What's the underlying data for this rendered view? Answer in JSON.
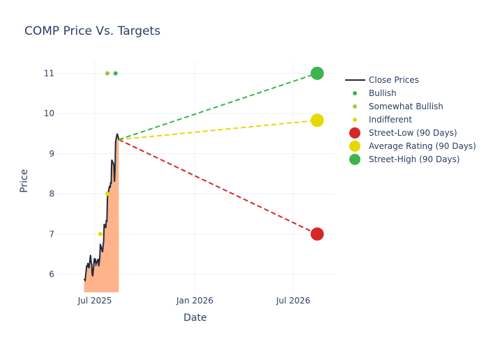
{
  "chart_data": {
    "type": "line",
    "title": "COMP Price Vs. Targets",
    "xlabel": "Date",
    "ylabel": "Price",
    "xlim": [
      "2025-04-20",
      "2026-09-15"
    ],
    "ylim": [
      5.55,
      11.3
    ],
    "x_ticks": [
      {
        "date": "2025-07-01",
        "label": "Jul 2025"
      },
      {
        "date": "2026-01-01",
        "label": "Jan 2026"
      },
      {
        "date": "2026-07-01",
        "label": "Jul 2026"
      }
    ],
    "y_ticks": [
      6,
      7,
      8,
      9,
      10,
      11
    ],
    "grid": true,
    "legend_position": "right",
    "series": [
      {
        "name": "Close Prices",
        "kind": "line-area",
        "color": "#1f2a3c",
        "fill_color": "#ffb38a",
        "x": [
          "2025-06-11",
          "2025-06-13",
          "2025-06-16",
          "2025-06-17",
          "2025-06-18",
          "2025-06-20",
          "2025-06-23",
          "2025-06-24",
          "2025-06-25",
          "2025-06-26",
          "2025-06-27",
          "2025-06-30",
          "2025-07-01",
          "2025-07-02",
          "2025-07-03",
          "2025-07-07",
          "2025-07-08",
          "2025-07-09",
          "2025-07-10",
          "2025-07-11",
          "2025-07-14",
          "2025-07-15",
          "2025-07-16",
          "2025-07-17",
          "2025-07-18",
          "2025-07-21",
          "2025-07-22",
          "2025-07-23",
          "2025-07-24",
          "2025-07-25",
          "2025-07-28",
          "2025-07-29",
          "2025-07-30",
          "2025-07-31",
          "2025-08-01",
          "2025-08-04",
          "2025-08-05",
          "2025-08-06",
          "2025-08-07",
          "2025-08-08",
          "2025-08-11",
          "2025-08-12",
          "2025-08-13",
          "2025-08-14"
        ],
        "y": [
          5.88,
          5.85,
          6.22,
          6.18,
          6.28,
          6.15,
          6.48,
          6.3,
          6.25,
          6.0,
          5.95,
          6.4,
          6.32,
          6.35,
          6.25,
          6.38,
          6.2,
          6.3,
          6.45,
          6.75,
          6.6,
          6.55,
          6.7,
          6.8,
          7.25,
          7.15,
          7.35,
          7.3,
          7.9,
          8.0,
          8.2,
          8.15,
          8.3,
          8.25,
          8.85,
          8.75,
          8.7,
          8.3,
          8.6,
          9.3,
          9.5,
          9.45,
          9.4,
          9.35
        ]
      },
      {
        "name": "Bullish",
        "kind": "markers",
        "color": "#3cb44b",
        "x": [
          "2025-07-24",
          "2025-08-08"
        ],
        "y": [
          11,
          11
        ]
      },
      {
        "name": "Somewhat Bullish",
        "kind": "markers",
        "color": "#9acd32",
        "x": [
          "2025-07-24"
        ],
        "y": [
          11
        ]
      },
      {
        "name": "Indifferent",
        "kind": "markers",
        "color": "#e6d800",
        "x": [
          "2025-07-11",
          "2025-07-24"
        ],
        "y": [
          7,
          8
        ]
      },
      {
        "name": "Street-Low (90 Days)",
        "kind": "target",
        "color": "#d62728",
        "x": [
          "2025-08-14",
          "2026-08-14"
        ],
        "y": [
          9.35,
          7
        ]
      },
      {
        "name": "Average Rating (90 Days)",
        "kind": "target",
        "color": "#e6d800",
        "x": [
          "2025-08-14",
          "2026-08-14"
        ],
        "y": [
          9.35,
          9.83
        ]
      },
      {
        "name": "Street-High (90 Days)",
        "kind": "target",
        "color": "#3cb44b",
        "x": [
          "2025-08-14",
          "2026-08-14"
        ],
        "y": [
          9.35,
          11
        ]
      }
    ]
  }
}
